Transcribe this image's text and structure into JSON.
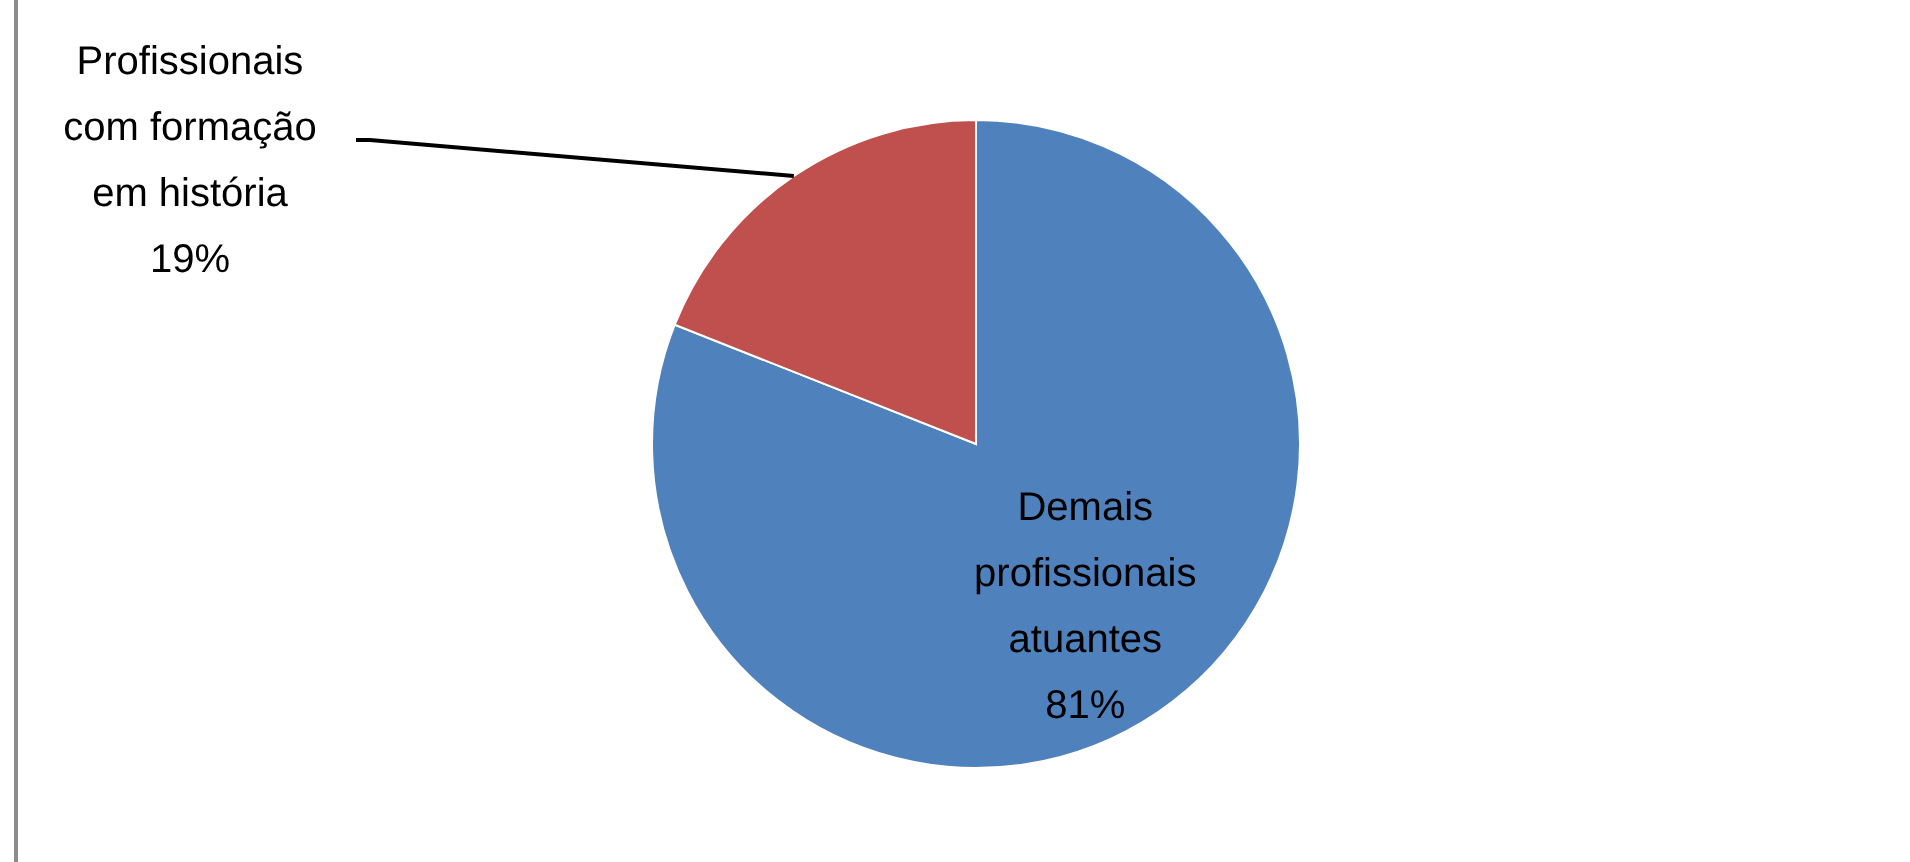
{
  "chart_data": {
    "type": "pie",
    "categories": [
      "Demais profissionais atuantes",
      "Profissionais com formação em história"
    ],
    "values": [
      81,
      19
    ],
    "colors": [
      "#4f81bd",
      "#c0504d"
    ],
    "value_labels": [
      "81%",
      "19%"
    ]
  }
}
